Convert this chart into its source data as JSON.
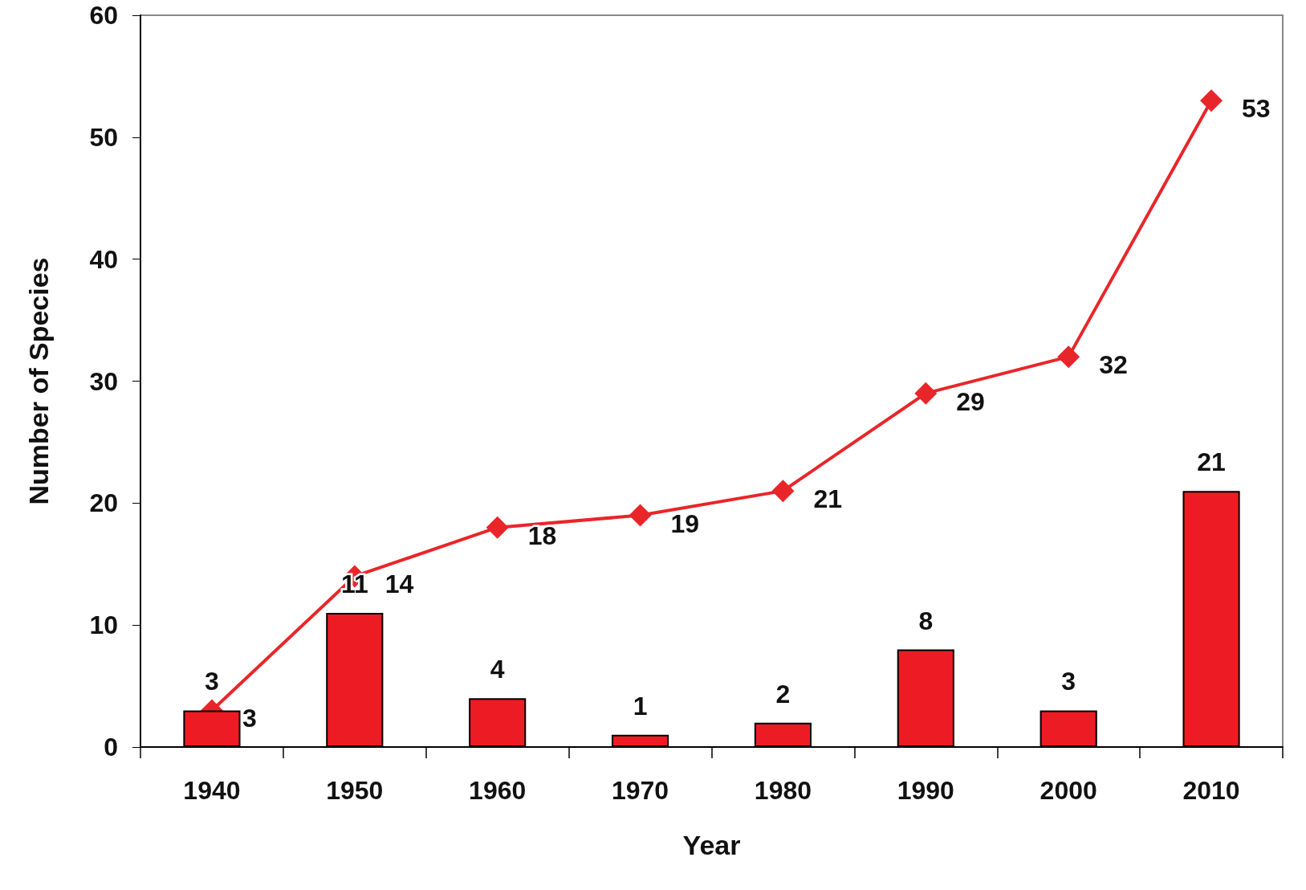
{
  "chart_data": {
    "type": "bar",
    "xlabel": "Year",
    "ylabel": "Number of Species",
    "categories": [
      "1940",
      "1950",
      "1960",
      "1970",
      "1980",
      "1990",
      "2000",
      "2010"
    ],
    "series": [
      {
        "color": "#ed1c24",
        "values": [
          3,
          11,
          4,
          1,
          2,
          8,
          3,
          21
        ]
      },
      {
        "type": "line",
        "color": "#e8262a",
        "values": [
          3,
          14,
          18,
          19,
          21,
          29,
          32,
          53
        ],
        "marker": "diamond",
        "line_style": "solid"
      }
    ],
    "ylim": [
      0,
      60
    ],
    "yticks": [
      0,
      10,
      20,
      30,
      40,
      50,
      60
    ],
    "grid": false,
    "data_labels": true
  }
}
